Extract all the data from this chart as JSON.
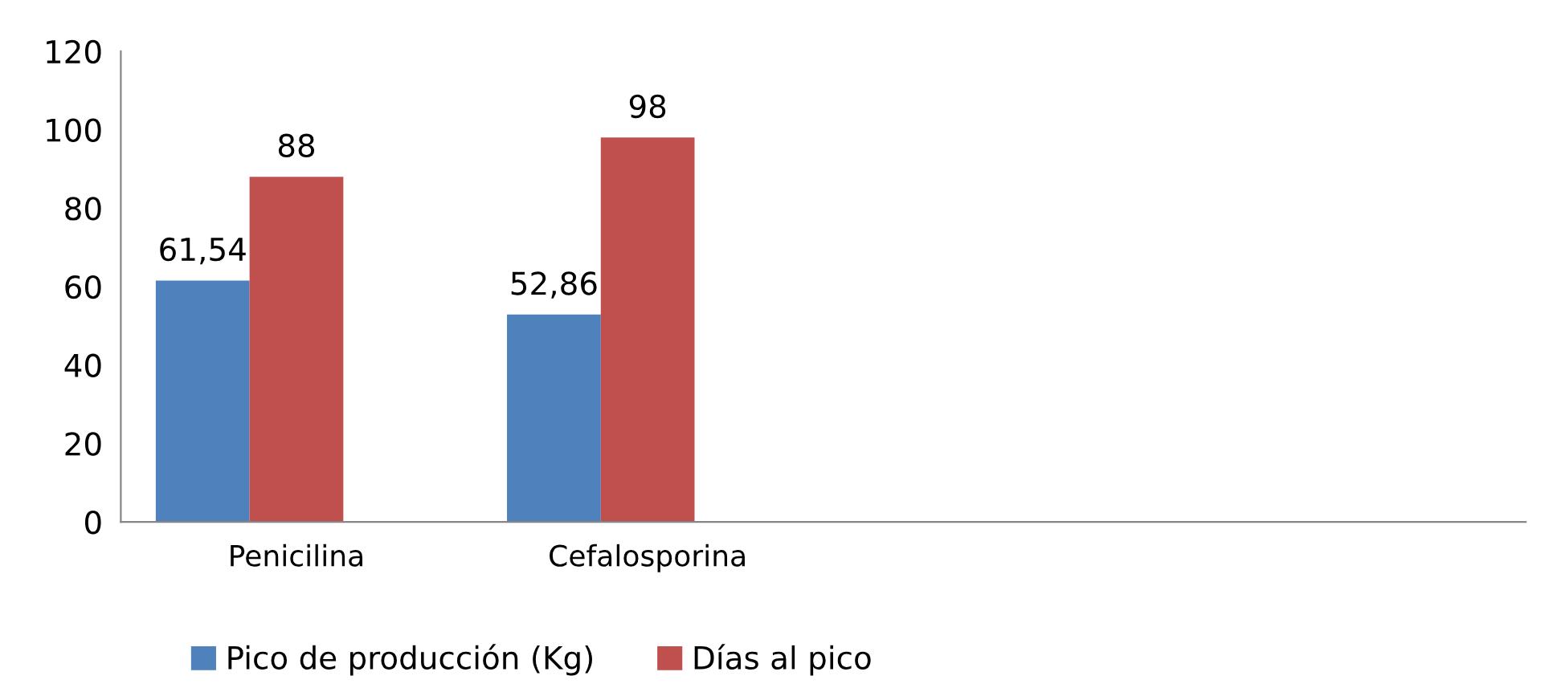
{
  "chart_data": {
    "type": "bar",
    "categories": [
      "Penicilina",
      "Cefalosporina",
      null,
      null
    ],
    "series": [
      {
        "name": "Pico de producción (Kg)",
        "color": "#4f81bd",
        "values": [
          61.54,
          52.86,
          null,
          null
        ],
        "value_labels": [
          "61,54",
          "52,86",
          null,
          null
        ]
      },
      {
        "name": "Días al pico",
        "color": "#c0504d",
        "values": [
          88,
          98,
          null,
          null
        ],
        "value_labels": [
          "88",
          "98",
          null,
          null
        ]
      }
    ],
    "ylim": [
      0,
      120
    ],
    "yticks": [
      0,
      20,
      40,
      60,
      80,
      100,
      120
    ],
    "grid": false,
    "legend": "bottom"
  }
}
